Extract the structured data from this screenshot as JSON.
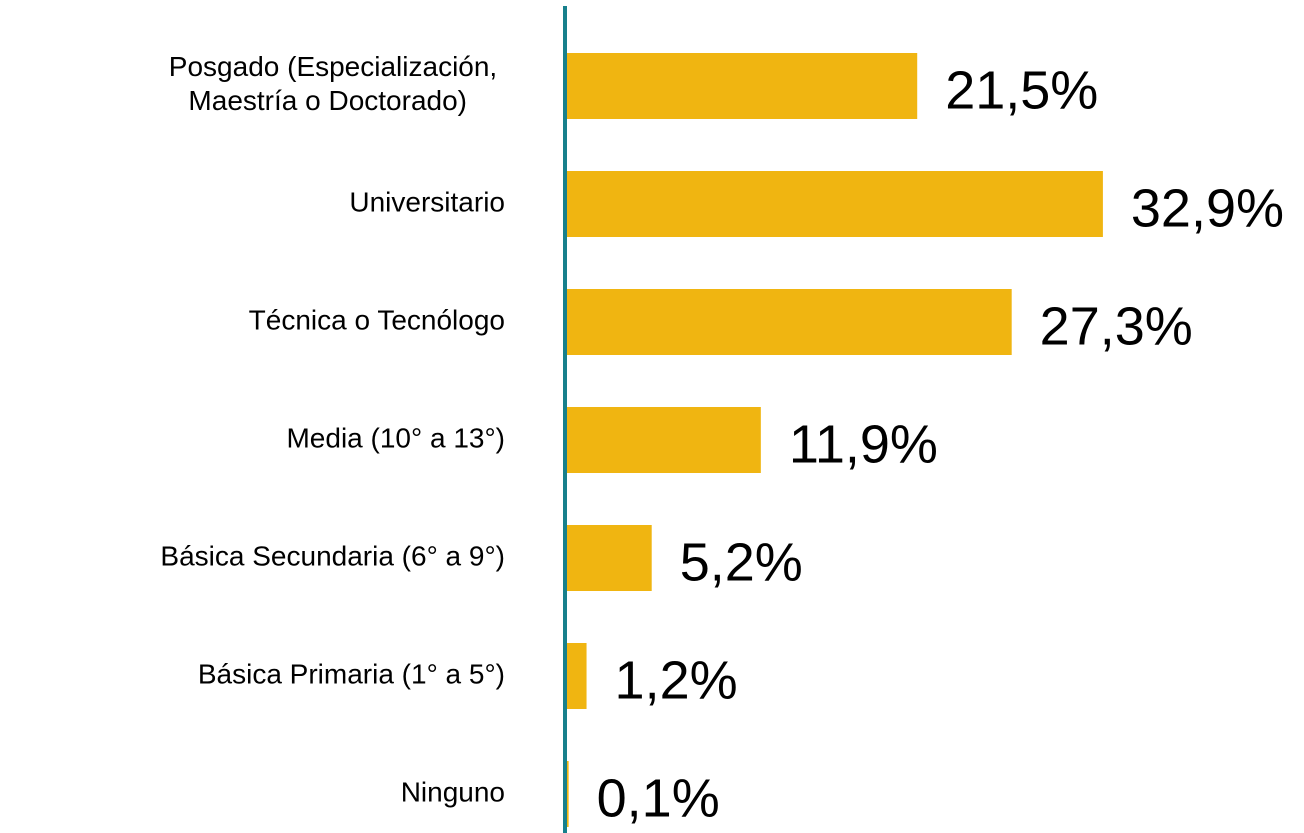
{
  "chart_data": {
    "type": "hbar",
    "categories": [
      "Posgado (Especialización, Maestría o Doctorado)",
      "Universitario",
      "Técnica o Tecnólogo",
      "Media (10° a 13°)",
      "Básica Secundaria (6° a 9°)",
      "Básica Primaria (1° a 5°)",
      "Ninguno"
    ],
    "values": [
      21.5,
      32.9,
      27.3,
      11.9,
      5.2,
      1.2,
      0.1
    ],
    "value_labels": [
      "21,5%",
      "32,9%",
      "27,3%",
      "11,9%",
      "5,2%",
      "1,2%",
      "0,1%"
    ],
    "color": "#f0b511",
    "axis_color": "#17808c",
    "xlim": [
      0,
      45
    ]
  }
}
